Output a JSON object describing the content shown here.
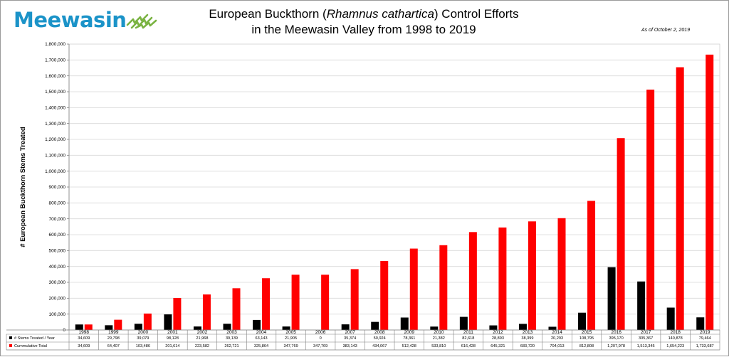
{
  "logo": {
    "text": "Meewasin"
  },
  "title": {
    "line1_prefix": "European Buckthorn (",
    "line1_species": "Rhamnus cathartica",
    "line1_suffix": ") Control Efforts",
    "line2": "in the Meewasin Valley from 1998 to 2019"
  },
  "date_note": "As of October 2, 2019",
  "colors": {
    "logo": "#1b93c8",
    "series_annual": "#000000",
    "series_cumulative": "#ff0000",
    "grid": "#d9d9d9"
  },
  "chart_data": {
    "type": "bar",
    "ylabel": "# European Buckthorn Stems Treated",
    "xlabel": "",
    "ylim": [
      0,
      1800000
    ],
    "ytick_step": 100000,
    "ytick_labels": [
      "0",
      "100,000",
      "200,000",
      "300,000",
      "400,000",
      "500,000",
      "600,000",
      "700,000",
      "800,000",
      "900,000",
      "1,000,000",
      "1,100,000",
      "1,200,000",
      "1,300,000",
      "1,400,000",
      "1,500,000",
      "1,600,000",
      "1,700,000",
      "1,800,000"
    ],
    "grid": true,
    "legend": "data-table",
    "categories": [
      "1998",
      "1999",
      "2000",
      "2001",
      "2002",
      "2003",
      "2004",
      "2005",
      "2006",
      "2007",
      "2008",
      "2009",
      "2010",
      "2011",
      "2012",
      "2013",
      "2014",
      "2015",
      "2016",
      "2017",
      "2018",
      "2019"
    ],
    "series": [
      {
        "name": "# Stems Treated / Year",
        "color": "#000000",
        "values": [
          34609,
          29798,
          39079,
          98128,
          21968,
          39139,
          63143,
          21905,
          0,
          35374,
          50924,
          78361,
          21382,
          82618,
          28893,
          38399,
          20293,
          108795,
          395170,
          305367,
          140878,
          79464
        ],
        "labels": [
          "34,609",
          "29,798",
          "39,079",
          "98,128",
          "21,968",
          "39,139",
          "63,143",
          "21,905",
          "0",
          "35,374",
          "50,924",
          "78,361",
          "21,382",
          "82,618",
          "28,893",
          "38,399",
          "20,293",
          "108,795",
          "395,170",
          "305,367",
          "140,878",
          "79,464"
        ]
      },
      {
        "name": "Cummulative Total",
        "color": "#ff0000",
        "values": [
          34609,
          64407,
          103486,
          201614,
          223582,
          262721,
          325864,
          347769,
          347769,
          383143,
          434067,
          512428,
          533810,
          616428,
          645321,
          683720,
          704013,
          812808,
          1207978,
          1513345,
          1654223,
          1733687
        ],
        "labels": [
          "34,609",
          "64,407",
          "103,486",
          "201,614",
          "223,582",
          "262,721",
          "325,864",
          "347,769",
          "347,769",
          "383,143",
          "434,067",
          "512,428",
          "533,810",
          "616,428",
          "645,321",
          "683,720",
          "704,013",
          "812,808",
          "1,207,978",
          "1,513,345",
          "1,654,223",
          "1,733,687"
        ]
      }
    ]
  }
}
